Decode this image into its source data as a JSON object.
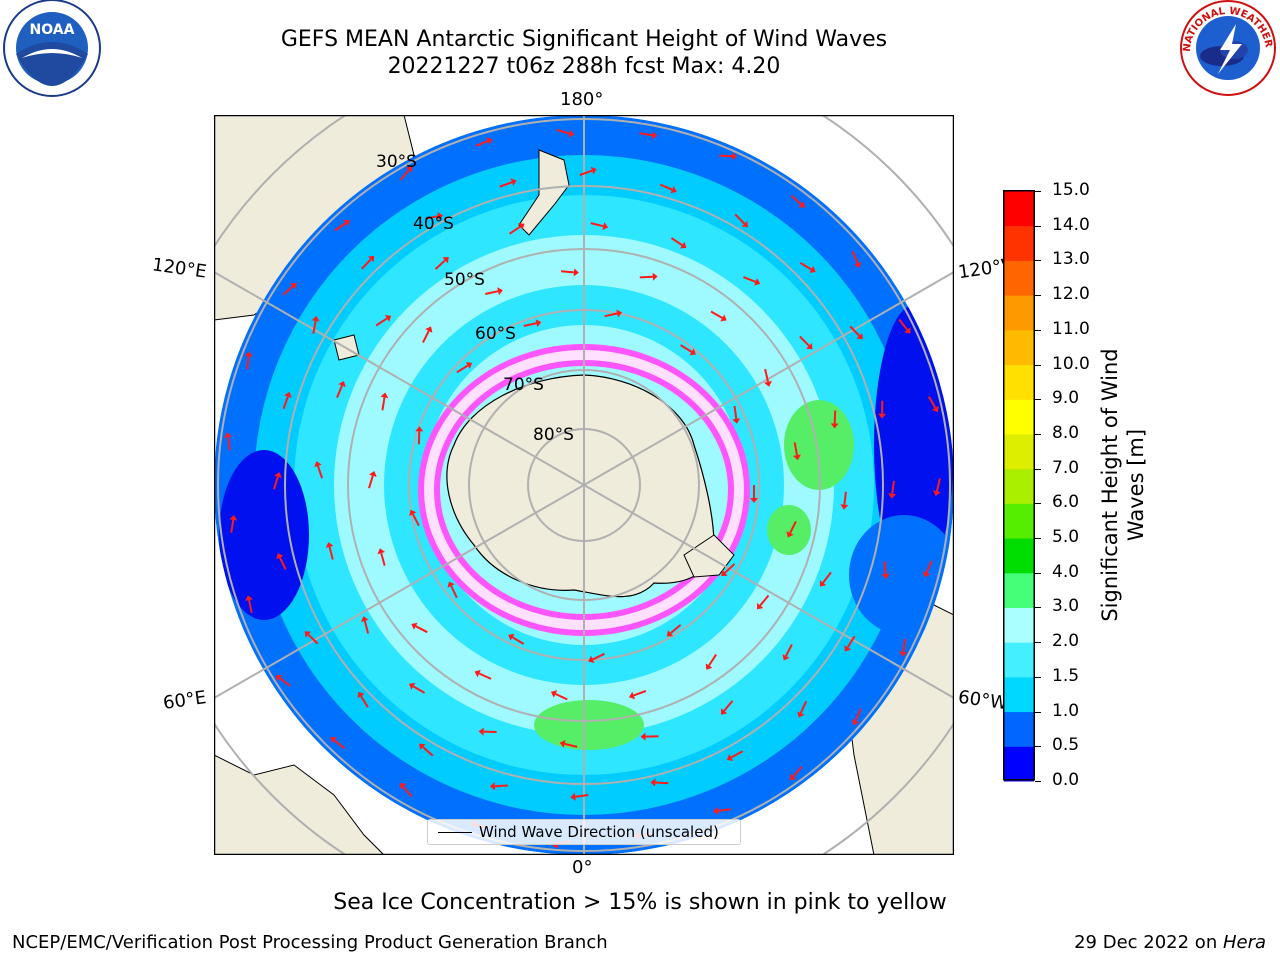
{
  "header": {
    "title_line1": "GEFS MEAN Antarctic Significant Height of Wind Waves",
    "title_line2": "20221227 t06z 288h fcst   Max: 4.20"
  },
  "map": {
    "projection": "south-polar-stereographic",
    "longitude_labels": {
      "top": "180°",
      "bottom": "0°",
      "upper_left": "120°E",
      "upper_right": "120°W",
      "lower_left": "60°E",
      "lower_right": "60°W"
    },
    "latitude_labels": [
      "30°S",
      "40°S",
      "50°S",
      "60°S",
      "70°S",
      "80°S"
    ],
    "colors": {
      "land": "#efecdc",
      "grid": "#b0b0b0",
      "arrows": "#ff1a1a",
      "ice_pink": "#ff55ff",
      "ice_white": "#ffffff"
    }
  },
  "legend": {
    "label": "Wind Wave Direction (unscaled)"
  },
  "colorbar": {
    "label_line1": "Significant Height of Wind",
    "label_line2": "Waves [m]",
    "ticks": [
      "0.0",
      "0.5",
      "1.0",
      "1.5",
      "2.0",
      "3.0",
      "4.0",
      "5.0",
      "6.0",
      "7.0",
      "8.0",
      "9.0",
      "10.0",
      "11.0",
      "12.0",
      "13.0",
      "14.0",
      "15.0"
    ],
    "colors": [
      "#0000ff",
      "#0066ff",
      "#00d8ff",
      "#44f0ff",
      "#aaffff",
      "#44ff77",
      "#00dd00",
      "#55ee00",
      "#aaee00",
      "#ddee00",
      "#ffff00",
      "#ffe000",
      "#ffbb00",
      "#ff9900",
      "#ff6600",
      "#ff3300",
      "#ff0000"
    ]
  },
  "note": "Sea Ice Concentration > 15% is shown in pink to yellow",
  "footer": {
    "left": "NCEP/EMC/Verification Post Processing Product Generation Branch",
    "right_date": "29 Dec 2022 on ",
    "right_machine": "Hera"
  },
  "logos": {
    "noaa": "NOAA",
    "nws": "NATIONAL WEATHER SERVICE"
  }
}
